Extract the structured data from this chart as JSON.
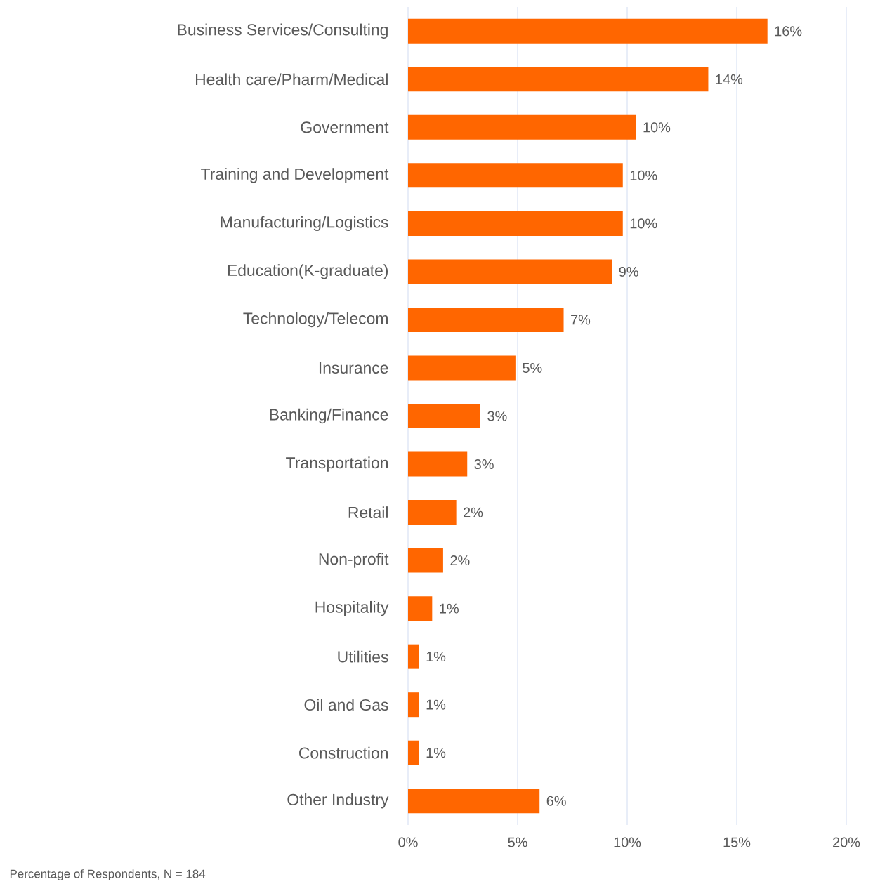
{
  "chart_data": {
    "type": "bar",
    "orientation": "horizontal",
    "categories": [
      "Business Services/Consulting",
      "Health care/Pharm/Medical",
      "Government",
      "Training and Development",
      "Manufacturing/Logistics",
      "Education(K-graduate)",
      "Technology/Telecom",
      "Insurance",
      "Banking/Finance",
      "Transportation",
      "Retail",
      "Non-profit",
      "Hospitality",
      "Utilities",
      "Oil and Gas",
      "Construction",
      "Other Industry"
    ],
    "values": [
      16.4,
      13.7,
      10.4,
      9.8,
      9.8,
      9.3,
      7.1,
      4.9,
      3.3,
      2.7,
      2.2,
      1.6,
      1.1,
      0.5,
      0.5,
      0.5,
      6.0
    ],
    "value_labels": [
      "16%",
      "14%",
      "10%",
      "10%",
      "10%",
      "9%",
      "7%",
      "5%",
      "3%",
      "3%",
      "2%",
      "2%",
      "1%",
      "1%",
      "1%",
      "1%",
      "6%"
    ],
    "color": "#ff6600",
    "xlim": [
      0,
      20
    ],
    "xticks": [
      {
        "value": 0,
        "label": "0%"
      },
      {
        "value": 5,
        "label": "5%"
      },
      {
        "value": 10,
        "label": "10%"
      },
      {
        "value": 15,
        "label": "15%"
      },
      {
        "value": 20,
        "label": "20%"
      }
    ],
    "grid": "x",
    "annotations": [
      "Percentage of Respondents, N = 184"
    ]
  }
}
